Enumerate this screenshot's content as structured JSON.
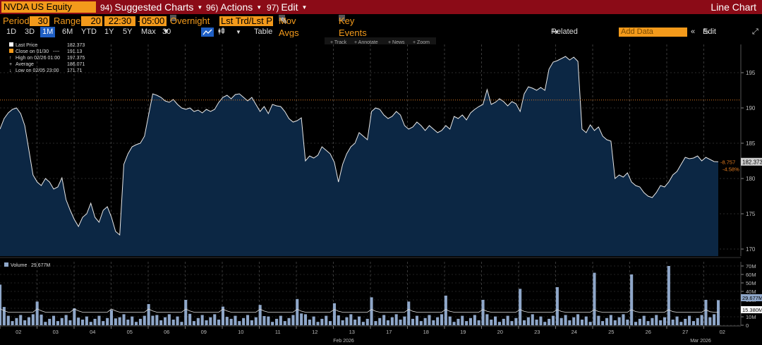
{
  "header": {
    "ticker": "NVDA US Equity",
    "menus": [
      {
        "num": "94)",
        "label": "Suggested Charts"
      },
      {
        "num": "96)",
        "label": "Actions"
      },
      {
        "num": "97)",
        "label": "Edit"
      }
    ],
    "chart_type": "Line Chart"
  },
  "period_bar": {
    "period_label": "Period",
    "period_value": "30",
    "range_label": "Range",
    "range_value": "20",
    "time_from": "22:30",
    "time_to": "05:00",
    "overnight_label": "Overnight",
    "field_value": "Lst Trd/Lst P",
    "mov_avgs_label": "Mov Avgs",
    "key_events_label": "Key Events"
  },
  "toolbar": {
    "ranges": [
      "1D",
      "3D",
      "1M",
      "6M",
      "YTD",
      "1Y",
      "5Y",
      "Max"
    ],
    "selected_range": "1M",
    "interval": "30 Min",
    "table_label": "Table",
    "related_data_label": "Related Data",
    "add_data_placeholder": "Add Data",
    "edit_chart_label": "Edit Chart"
  },
  "chart_tools": [
    "Track",
    "Annotate",
    "News",
    "Zoom"
  ],
  "legend": {
    "last_price": {
      "label": "Last Price",
      "value": "182.373"
    },
    "close": {
      "label": "Close on 01/30",
      "dashes": "----",
      "value": "191.13"
    },
    "high": {
      "label": "High on 02/26 01:00",
      "value": "197.375"
    },
    "average": {
      "label": "Average",
      "value": "186.071"
    },
    "low": {
      "label": "Low on 02/05 23:00",
      "value": "171.71"
    }
  },
  "price_panel": {
    "last_label": "182.373",
    "change": "-8.757",
    "change_pct": "-4.58%",
    "close_ref": 191.13,
    "colors": {
      "line": "#e8e8e8",
      "fill": "#0c2744",
      "close_line": "#e07a1f",
      "change": "#e07a1f"
    }
  },
  "volume_panel": {
    "legend_label": "Volume",
    "legend_value": "29.677M",
    "last_label": "29.677M",
    "avg_label": "15.380M"
  },
  "chart_data": {
    "type": "line",
    "title": "",
    "series": [
      {
        "values": [
          187,
          188.5,
          189.3,
          189.8,
          190,
          189.2,
          187.5,
          184,
          180.5,
          179.5,
          179,
          180,
          179.5,
          178.5,
          178.8,
          180.1,
          177,
          175.5,
          174.2,
          173.2,
          174.5,
          175,
          176.5,
          174.5,
          173.8,
          175.5,
          176,
          174.5,
          172.5,
          172,
          182,
          183.5,
          184.5,
          184.8,
          185,
          186,
          189,
          192,
          191.8,
          191.5,
          191,
          190.8,
          191.2,
          190.5,
          190,
          189.8,
          190,
          189.5,
          189.7,
          189.3,
          189.8,
          189.5,
          189.8,
          190.8,
          191.5,
          191.8,
          191.3,
          191.9,
          192,
          191.5,
          191,
          191.5,
          190.5,
          189.5,
          190.2,
          189.2,
          190.5,
          190.3,
          190.2,
          189.5,
          188.5,
          188,
          188.2,
          188.6,
          182.5,
          183.2,
          182.9,
          183.3,
          184.5,
          184,
          183.5,
          182.3,
          179.5,
          182,
          183.5,
          184.5,
          185,
          186.5,
          186,
          185.5,
          189.5,
          190,
          189.8,
          189,
          188.5,
          188.8,
          189.5,
          189,
          187.5,
          187,
          187.3,
          188,
          187.5,
          186.8,
          187.5,
          187,
          186.5,
          186.8,
          187.5,
          187,
          188.8,
          188.5,
          189,
          188.3,
          189.3,
          189.8,
          190.2,
          190.5,
          192.6,
          190.5,
          190.8,
          191.3,
          190.9,
          190.3,
          190.9,
          190.6,
          189.5,
          192,
          193,
          192.8,
          192.5,
          192.9,
          192.5,
          195.5,
          196.5,
          196.7,
          197,
          197.3,
          196.8,
          197.2,
          196.6,
          187,
          186.5,
          187.6,
          186.8,
          187.3,
          186,
          185.5,
          185.3,
          180,
          180.5,
          180.2,
          180.8,
          179.5,
          179,
          178.8,
          178,
          177.5,
          177.3,
          178,
          179,
          178.8,
          179.5,
          180.5,
          181,
          182,
          183,
          182.8,
          182.9,
          183.2,
          182.5,
          183,
          182.7,
          182.4,
          182.373
        ]
      }
    ],
    "x_tick_labels": [
      "02",
      "03",
      "04",
      "05",
      "06",
      "09",
      "10",
      "11",
      "12",
      "13",
      "17",
      "18",
      "19",
      "20",
      "23",
      "24",
      "25",
      "26",
      "27",
      "02"
    ],
    "x_period_labels": [
      "Feb 2026",
      "Mar 2026"
    ],
    "y_ticks": [
      170,
      175,
      180,
      185,
      190,
      195
    ],
    "ylim": [
      169,
      199
    ],
    "volume": {
      "y_ticks": [
        "0",
        "10M",
        "20M",
        "30M",
        "40M",
        "50M",
        "60M",
        "70M"
      ],
      "ylim": [
        0,
        75
      ],
      "session_spikes": [
        48,
        28,
        20,
        18,
        25,
        30,
        22,
        24,
        31,
        26,
        33,
        28,
        35,
        30,
        43,
        45,
        62,
        60,
        70,
        30
      ],
      "average_level": 15.38
    },
    "grid": true,
    "legend_position": "top-left"
  }
}
